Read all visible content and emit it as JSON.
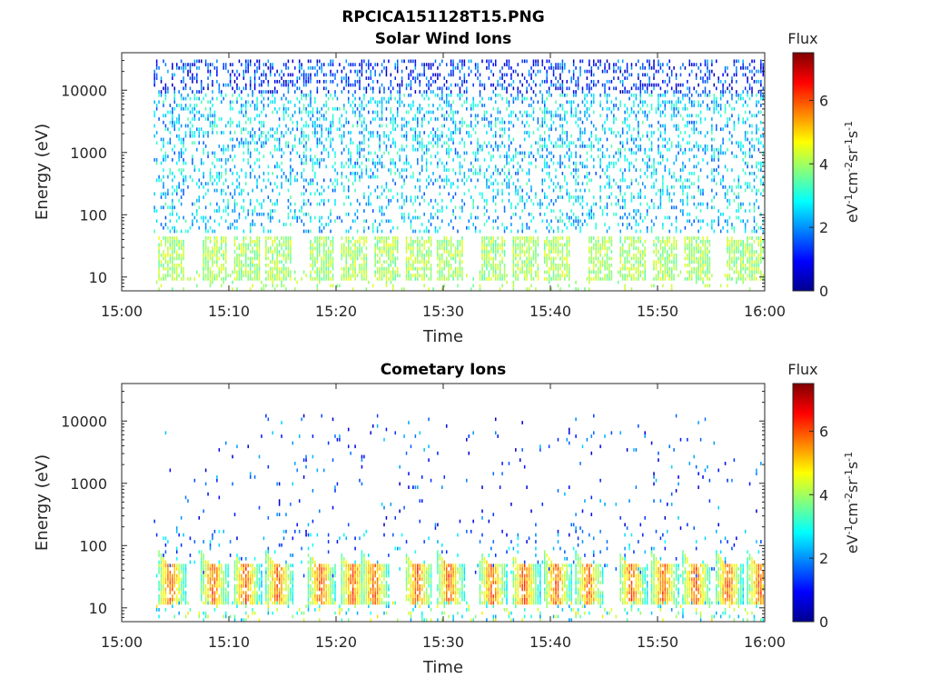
{
  "figure": {
    "title": "RPCICA151128T15.PNG"
  },
  "chart_data": [
    {
      "type": "heatmap",
      "title": "Solar Wind Ions",
      "xlabel": "Time",
      "ylabel": "Energy (eV)",
      "x_ticks": [
        "15:00",
        "15:10",
        "15:20",
        "15:30",
        "15:40",
        "15:50",
        "16:00"
      ],
      "x_range": [
        "15:00",
        "16:00"
      ],
      "y_scale": "log",
      "y_ticks": [
        "10",
        "100",
        "1000",
        "10000"
      ],
      "y_range": [
        6,
        40000
      ],
      "colorbar": {
        "label": "Flux",
        "unit": "eV-1cm-2sr-1s-1",
        "ticks": [
          "0",
          "2",
          "4",
          "6"
        ],
        "range": [
          0,
          7.5
        ],
        "colormap": "jet"
      },
      "data_start": "15:03",
      "data_end": "16:00",
      "features": {
        "scattered_background": {
          "energy_range": [
            50,
            30000
          ],
          "flux_range": [
            1.5,
            3.5
          ]
        },
        "low_energy_bursts_times": [
          "15:04",
          "15:08",
          "15:11",
          "15:14",
          "15:18",
          "15:21",
          "15:24",
          "15:27",
          "15:30",
          "15:34",
          "15:37",
          "15:40",
          "15:44",
          "15:47",
          "15:50",
          "15:53",
          "15:57",
          "15:59"
        ],
        "low_energy_bursts_energy_range": [
          8,
          40
        ],
        "low_energy_bursts_flux": 4.0
      }
    },
    {
      "type": "heatmap",
      "title": "Cometary Ions",
      "xlabel": "Time",
      "ylabel": "Energy (eV)",
      "x_ticks": [
        "15:00",
        "15:10",
        "15:20",
        "15:30",
        "15:40",
        "15:50",
        "16:00"
      ],
      "x_range": [
        "15:00",
        "16:00"
      ],
      "y_scale": "log",
      "y_ticks": [
        "10",
        "100",
        "1000",
        "10000"
      ],
      "y_range": [
        6,
        40000
      ],
      "colorbar": {
        "label": "Flux",
        "unit": "eV-1cm-2sr-1s-1",
        "ticks": [
          "0",
          "2",
          "4",
          "6"
        ],
        "range": [
          0,
          7.5
        ],
        "colormap": "jet"
      },
      "data_start": "15:03",
      "data_end": "16:00",
      "features": {
        "intense_bursts_times": [
          "15:04",
          "15:08",
          "15:11",
          "15:14",
          "15:18",
          "15:21",
          "15:23",
          "15:27",
          "15:30",
          "15:34",
          "15:37",
          "15:40",
          "15:43",
          "15:47",
          "15:50",
          "15:53",
          "15:56",
          "15:59"
        ],
        "intense_bursts_energy_range": [
          10,
          45
        ],
        "intense_bursts_peak_flux": 6.5,
        "sparse_high_energy": {
          "energy_range": [
            100,
            12000
          ],
          "flux_range": [
            0.5,
            2.5
          ]
        }
      }
    }
  ]
}
